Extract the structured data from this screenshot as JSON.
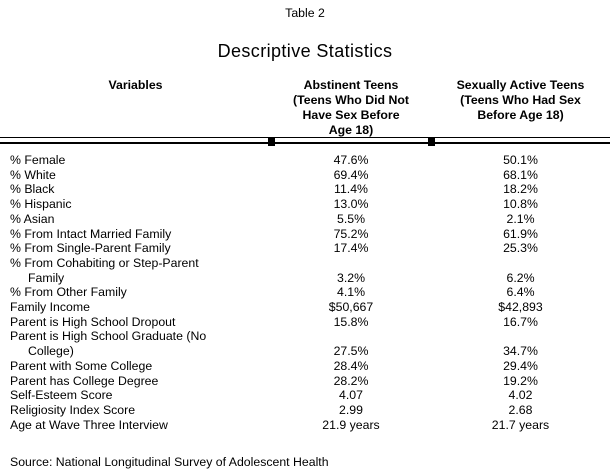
{
  "page": {
    "table_label": "Table 2",
    "title": "Descriptive Statistics",
    "source_note": "Source: National Longitudinal Survey of Adolescent Health"
  },
  "colors": {
    "text": "#000000",
    "background": "#ffffff",
    "rule": "#000000"
  },
  "table": {
    "header": {
      "variables": "Variables",
      "abstinent": "Abstinent Teens\n(Teens Who Did Not\nHave Sex Before\nAge 18)",
      "sexually_active": "Sexually Active Teens\n(Teens Who Had Sex\nBefore Age 18)"
    },
    "rows": [
      {
        "variable": "% Female",
        "abstinent": "47.6%",
        "sexually_active": "50.1%"
      },
      {
        "variable": "% White",
        "abstinent": "69.4%",
        "sexually_active": "68.1%"
      },
      {
        "variable": "% Black",
        "abstinent": "11.4%",
        "sexually_active": "18.2%"
      },
      {
        "variable": "% Hispanic",
        "abstinent": "13.0%",
        "sexually_active": "10.8%"
      },
      {
        "variable": "% Asian",
        "abstinent": "5.5%",
        "sexually_active": "2.1%"
      },
      {
        "variable": "% From Intact Married Family",
        "abstinent": "75.2%",
        "sexually_active": "61.9%"
      },
      {
        "variable": "% From Single-Parent Family",
        "abstinent": "17.4%",
        "sexually_active": "25.3%"
      },
      {
        "variable": "% From Cohabiting or Step-Parent\nFamily",
        "abstinent": "3.2%",
        "sexually_active": "6.2%"
      },
      {
        "variable": "% From Other Family",
        "abstinent": "4.1%",
        "sexually_active": "6.4%"
      },
      {
        "variable": "Family Income",
        "abstinent": "$50,667",
        "sexually_active": "$42,893"
      },
      {
        "variable": "Parent is High School Dropout",
        "abstinent": "15.8%",
        "sexually_active": "16.7%"
      },
      {
        "variable": "Parent is High School Graduate (No\nCollege)",
        "abstinent": "27.5%",
        "sexually_active": "34.7%"
      },
      {
        "variable": "Parent with Some College",
        "abstinent": "28.4%",
        "sexually_active": "29.4%"
      },
      {
        "variable": "Parent has College Degree",
        "abstinent": "28.2%",
        "sexually_active": "19.2%"
      },
      {
        "variable": "Self-Esteem Score",
        "abstinent": "4.07",
        "sexually_active": "4.02"
      },
      {
        "variable": "Religiosity Index Score",
        "abstinent": "2.99",
        "sexually_active": "2.68"
      },
      {
        "variable": "Age at Wave Three Interview",
        "abstinent": "21.9 years",
        "sexually_active": "21.7 years"
      }
    ]
  }
}
